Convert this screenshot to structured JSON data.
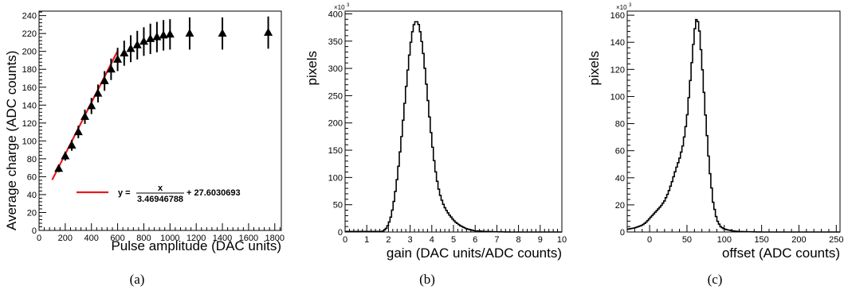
{
  "panels": [
    {
      "id": "a",
      "caption": "(a)"
    },
    {
      "id": "b",
      "caption": "(b)"
    },
    {
      "id": "c",
      "caption": "(c)"
    }
  ],
  "chart_data": [
    {
      "type": "scatter",
      "caption": "(a)",
      "xlabel": "Pulse amplitude (DAC units)",
      "ylabel": "Average charge (ADC counts)",
      "xlim": [
        0,
        1850
      ],
      "ylim": [
        0,
        245
      ],
      "xticks": [
        0,
        200,
        400,
        600,
        800,
        1000,
        1200,
        1400,
        1600,
        1800
      ],
      "yticks": [
        0,
        20,
        40,
        60,
        80,
        100,
        120,
        140,
        160,
        180,
        200,
        220,
        240
      ],
      "marker": "triangle",
      "points": [
        {
          "x": 150,
          "y": 69,
          "err": 4
        },
        {
          "x": 200,
          "y": 83,
          "err": 5
        },
        {
          "x": 250,
          "y": 95,
          "err": 6
        },
        {
          "x": 300,
          "y": 110,
          "err": 7
        },
        {
          "x": 350,
          "y": 127,
          "err": 8
        },
        {
          "x": 400,
          "y": 139,
          "err": 9
        },
        {
          "x": 450,
          "y": 153,
          "err": 10
        },
        {
          "x": 500,
          "y": 167,
          "err": 11
        },
        {
          "x": 550,
          "y": 180,
          "err": 12
        },
        {
          "x": 600,
          "y": 191,
          "err": 13
        },
        {
          "x": 650,
          "y": 198,
          "err": 14
        },
        {
          "x": 700,
          "y": 203,
          "err": 15
        },
        {
          "x": 750,
          "y": 207,
          "err": 16
        },
        {
          "x": 800,
          "y": 211,
          "err": 16
        },
        {
          "x": 850,
          "y": 214,
          "err": 17
        },
        {
          "x": 900,
          "y": 216,
          "err": 17
        },
        {
          "x": 950,
          "y": 218,
          "err": 17
        },
        {
          "x": 1000,
          "y": 219,
          "err": 17
        },
        {
          "x": 1150,
          "y": 220,
          "err": 18
        },
        {
          "x": 1400,
          "y": 220,
          "err": 18
        },
        {
          "x": 1750,
          "y": 221,
          "err": 18
        }
      ],
      "fit": {
        "x_range": [
          100,
          600
        ],
        "slope_divisor": 3.46946788,
        "intercept": 27.6030693,
        "color": "#e8191c",
        "legend": {
          "prefix": "y =",
          "numerator": "x",
          "denominator": "3.46946788",
          "suffix": "+ 27.6030693"
        }
      }
    },
    {
      "type": "histogram",
      "caption": "(b)",
      "xlabel": "gain (DAC units/ADC counts)",
      "ylabel": "pixels",
      "exponent_label": "×10",
      "exponent": "3",
      "xlim": [
        0,
        10
      ],
      "ylim": [
        0,
        405
      ],
      "xticks": [
        0,
        1,
        2,
        3,
        4,
        5,
        6,
        7,
        8,
        9,
        10
      ],
      "yticks": [
        0,
        50,
        100,
        150,
        200,
        250,
        300,
        350,
        400
      ],
      "peak": 387,
      "x": [
        1.7,
        1.8,
        1.9,
        2.0,
        2.1,
        2.2,
        2.3,
        2.4,
        2.5,
        2.6,
        2.7,
        2.8,
        2.9,
        3.0,
        3.1,
        3.2,
        3.3,
        3.4,
        3.5,
        3.6,
        3.7,
        3.8,
        3.9,
        4.0,
        4.1,
        4.2,
        4.3,
        4.4,
        4.5,
        4.6,
        4.7,
        4.8,
        4.9,
        5.0,
        5.1,
        5.2,
        5.3,
        5.4,
        5.5,
        5.6,
        5.7,
        5.8,
        5.9,
        6.0,
        6.2,
        6.4,
        6.6,
        6.8,
        7.0,
        7.3,
        7.6
      ],
      "values": [
        1,
        3,
        7,
        14,
        26,
        44,
        68,
        98,
        133,
        172,
        214,
        258,
        300,
        338,
        366,
        384,
        387,
        380,
        360,
        330,
        292,
        250,
        208,
        168,
        133,
        104,
        82,
        66,
        54,
        45,
        38,
        32,
        27,
        22,
        18,
        15,
        12,
        10,
        8,
        6,
        5,
        4,
        3,
        2,
        2,
        1,
        1,
        0.5,
        0.4,
        0.2,
        0
      ]
    },
    {
      "type": "histogram",
      "caption": "(c)",
      "xlabel": "offset (ADC counts)",
      "ylabel": "pixels",
      "exponent_label": "×10",
      "exponent": "3",
      "xlim": [
        -30,
        255
      ],
      "ylim": [
        0,
        163
      ],
      "xticks": [
        0,
        50,
        100,
        150,
        200,
        250
      ],
      "yticks": [
        0,
        20,
        40,
        60,
        80,
        100,
        120,
        140,
        160
      ],
      "peak": 158,
      "x": [
        -30,
        -20,
        -10,
        -5,
        0,
        5,
        10,
        15,
        20,
        25,
        30,
        35,
        40,
        45,
        50,
        55,
        60,
        63,
        66,
        70,
        75,
        80,
        85,
        90,
        95,
        100,
        105,
        110,
        115,
        120,
        130,
        150
      ],
      "values": [
        2,
        3,
        5,
        7,
        10,
        13,
        16,
        19,
        23,
        29,
        37,
        46,
        54,
        65,
        84,
        115,
        148,
        158,
        153,
        126,
        85,
        48,
        22,
        9,
        4,
        2.2,
        1.5,
        1,
        0.6,
        0.4,
        0.2,
        0
      ]
    }
  ]
}
